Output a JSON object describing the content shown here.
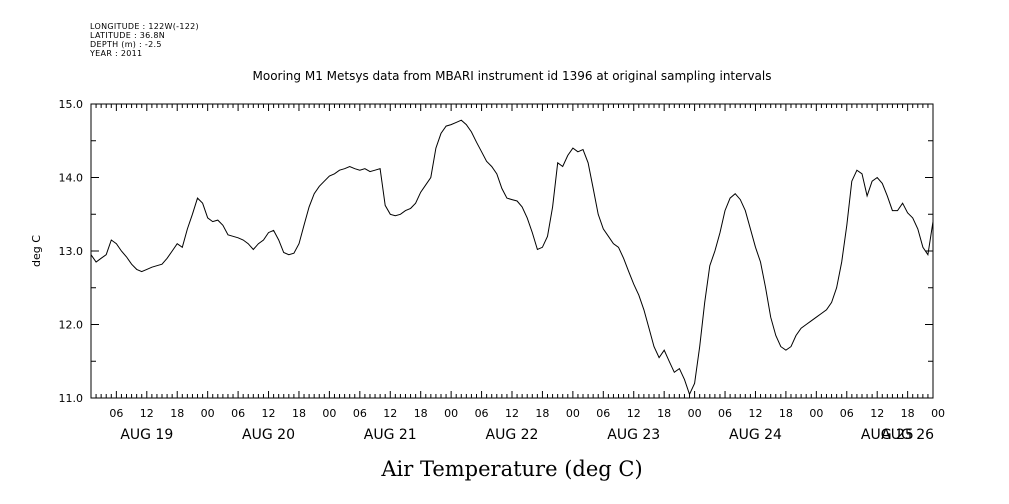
{
  "header": {
    "lines": [
      "LONGITUDE : 122W(-122)",
      "LATITUDE : 36.8N",
      "DEPTH (m) : -2.5",
      "YEAR : 2011"
    ]
  },
  "chart_data": {
    "type": "line",
    "title": "Mooring M1 Metsys data from MBARI instrument id 1396 at original sampling intervals",
    "ylabel": "deg C",
    "xlabel": "Air Temperature (deg C)",
    "ylim": [
      11.0,
      15.0
    ],
    "yticks": [
      11.0,
      12.0,
      13.0,
      14.0,
      15.0
    ],
    "xlim": [
      0,
      166
    ],
    "x_unit": "hours from Aug 19 01:00",
    "hour_tick_labels": [
      "06",
      "12",
      "18",
      "00",
      "06",
      "12",
      "18",
      "00",
      "06",
      "12",
      "18",
      "00",
      "06",
      "12",
      "18",
      "00",
      "06",
      "12",
      "18",
      "00",
      "06",
      "12",
      "18",
      "00",
      "06",
      "12",
      "18",
      "00"
    ],
    "day_labels": [
      "AUG 19",
      "AUG 20",
      "AUG 21",
      "AUG 22",
      "AUG 23",
      "AUG 24",
      "AUG 25",
      "AUG 26"
    ],
    "grid": false,
    "series": [
      {
        "values": [
          [
            0,
            12.95
          ],
          [
            1,
            12.85
          ],
          [
            2,
            12.9
          ],
          [
            3,
            12.95
          ],
          [
            4,
            13.15
          ],
          [
            5,
            13.1
          ],
          [
            6,
            13.0
          ],
          [
            7,
            12.92
          ],
          [
            8,
            12.82
          ],
          [
            9,
            12.75
          ],
          [
            10,
            12.72
          ],
          [
            11,
            12.75
          ],
          [
            12,
            12.78
          ],
          [
            13,
            12.8
          ],
          [
            14,
            12.82
          ],
          [
            15,
            12.9
          ],
          [
            16,
            13.0
          ],
          [
            17,
            13.1
          ],
          [
            18,
            13.05
          ],
          [
            19,
            13.3
          ],
          [
            20,
            13.5
          ],
          [
            21,
            13.72
          ],
          [
            22,
            13.65
          ],
          [
            23,
            13.45
          ],
          [
            24,
            13.4
          ],
          [
            25,
            13.42
          ],
          [
            26,
            13.35
          ],
          [
            27,
            13.22
          ],
          [
            28,
            13.2
          ],
          [
            29,
            13.18
          ],
          [
            30,
            13.15
          ],
          [
            31,
            13.1
          ],
          [
            32,
            13.02
          ],
          [
            33,
            13.1
          ],
          [
            34,
            13.15
          ],
          [
            35,
            13.25
          ],
          [
            36,
            13.28
          ],
          [
            37,
            13.15
          ],
          [
            38,
            12.98
          ],
          [
            39,
            12.95
          ],
          [
            40,
            12.97
          ],
          [
            41,
            13.1
          ],
          [
            42,
            13.35
          ],
          [
            43,
            13.6
          ],
          [
            44,
            13.78
          ],
          [
            45,
            13.88
          ],
          [
            46,
            13.95
          ],
          [
            47,
            14.02
          ],
          [
            48,
            14.05
          ],
          [
            49,
            14.1
          ],
          [
            50,
            14.12
          ],
          [
            51,
            14.15
          ],
          [
            52,
            14.12
          ],
          [
            53,
            14.1
          ],
          [
            54,
            14.12
          ],
          [
            55,
            14.08
          ],
          [
            56,
            14.1
          ],
          [
            57,
            14.12
          ],
          [
            58,
            13.62
          ],
          [
            59,
            13.5
          ],
          [
            60,
            13.48
          ],
          [
            61,
            13.5
          ],
          [
            62,
            13.55
          ],
          [
            63,
            13.58
          ],
          [
            64,
            13.65
          ],
          [
            65,
            13.8
          ],
          [
            66,
            13.9
          ],
          [
            67,
            14.0
          ],
          [
            68,
            14.4
          ],
          [
            69,
            14.6
          ],
          [
            70,
            14.7
          ],
          [
            71,
            14.72
          ],
          [
            72,
            14.75
          ],
          [
            73,
            14.78
          ],
          [
            74,
            14.72
          ],
          [
            75,
            14.62
          ],
          [
            76,
            14.48
          ],
          [
            77,
            14.35
          ],
          [
            78,
            14.22
          ],
          [
            79,
            14.15
          ],
          [
            80,
            14.05
          ],
          [
            81,
            13.85
          ],
          [
            82,
            13.72
          ],
          [
            83,
            13.7
          ],
          [
            84,
            13.68
          ],
          [
            85,
            13.6
          ],
          [
            86,
            13.45
          ],
          [
            87,
            13.25
          ],
          [
            88,
            13.02
          ],
          [
            89,
            13.05
          ],
          [
            90,
            13.2
          ],
          [
            91,
            13.6
          ],
          [
            92,
            14.2
          ],
          [
            93,
            14.15
          ],
          [
            94,
            14.3
          ],
          [
            95,
            14.4
          ],
          [
            96,
            14.35
          ],
          [
            97,
            14.38
          ],
          [
            98,
            14.2
          ],
          [
            99,
            13.85
          ],
          [
            100,
            13.5
          ],
          [
            101,
            13.3
          ],
          [
            102,
            13.2
          ],
          [
            103,
            13.1
          ],
          [
            104,
            13.05
          ],
          [
            105,
            12.9
          ],
          [
            106,
            12.72
          ],
          [
            107,
            12.55
          ],
          [
            108,
            12.4
          ],
          [
            109,
            12.2
          ],
          [
            110,
            11.95
          ],
          [
            111,
            11.7
          ],
          [
            112,
            11.55
          ],
          [
            113,
            11.65
          ],
          [
            114,
            11.5
          ],
          [
            115,
            11.35
          ],
          [
            116,
            11.4
          ],
          [
            117,
            11.25
          ],
          [
            118,
            11.05
          ],
          [
            119,
            11.2
          ],
          [
            120,
            11.7
          ],
          [
            121,
            12.3
          ],
          [
            122,
            12.8
          ],
          [
            123,
            13.0
          ],
          [
            124,
            13.25
          ],
          [
            125,
            13.55
          ],
          [
            126,
            13.72
          ],
          [
            127,
            13.78
          ],
          [
            128,
            13.7
          ],
          [
            129,
            13.55
          ],
          [
            130,
            13.3
          ],
          [
            131,
            13.05
          ],
          [
            132,
            12.85
          ],
          [
            133,
            12.5
          ],
          [
            134,
            12.1
          ],
          [
            135,
            11.85
          ],
          [
            136,
            11.7
          ],
          [
            137,
            11.65
          ],
          [
            138,
            11.7
          ],
          [
            139,
            11.85
          ],
          [
            140,
            11.95
          ],
          [
            141,
            12.0
          ],
          [
            142,
            12.05
          ],
          [
            143,
            12.1
          ],
          [
            144,
            12.15
          ],
          [
            145,
            12.2
          ],
          [
            146,
            12.3
          ],
          [
            147,
            12.5
          ],
          [
            148,
            12.85
          ],
          [
            149,
            13.35
          ],
          [
            150,
            13.95
          ],
          [
            151,
            14.1
          ],
          [
            152,
            14.05
          ],
          [
            153,
            13.75
          ],
          [
            154,
            13.95
          ],
          [
            155,
            14.0
          ],
          [
            156,
            13.92
          ],
          [
            157,
            13.75
          ],
          [
            158,
            13.55
          ],
          [
            159,
            13.55
          ],
          [
            160,
            13.65
          ],
          [
            161,
            13.52
          ],
          [
            162,
            13.45
          ],
          [
            163,
            13.3
          ],
          [
            164,
            13.05
          ],
          [
            165,
            12.95
          ],
          [
            166,
            13.4
          ]
        ]
      }
    ]
  }
}
